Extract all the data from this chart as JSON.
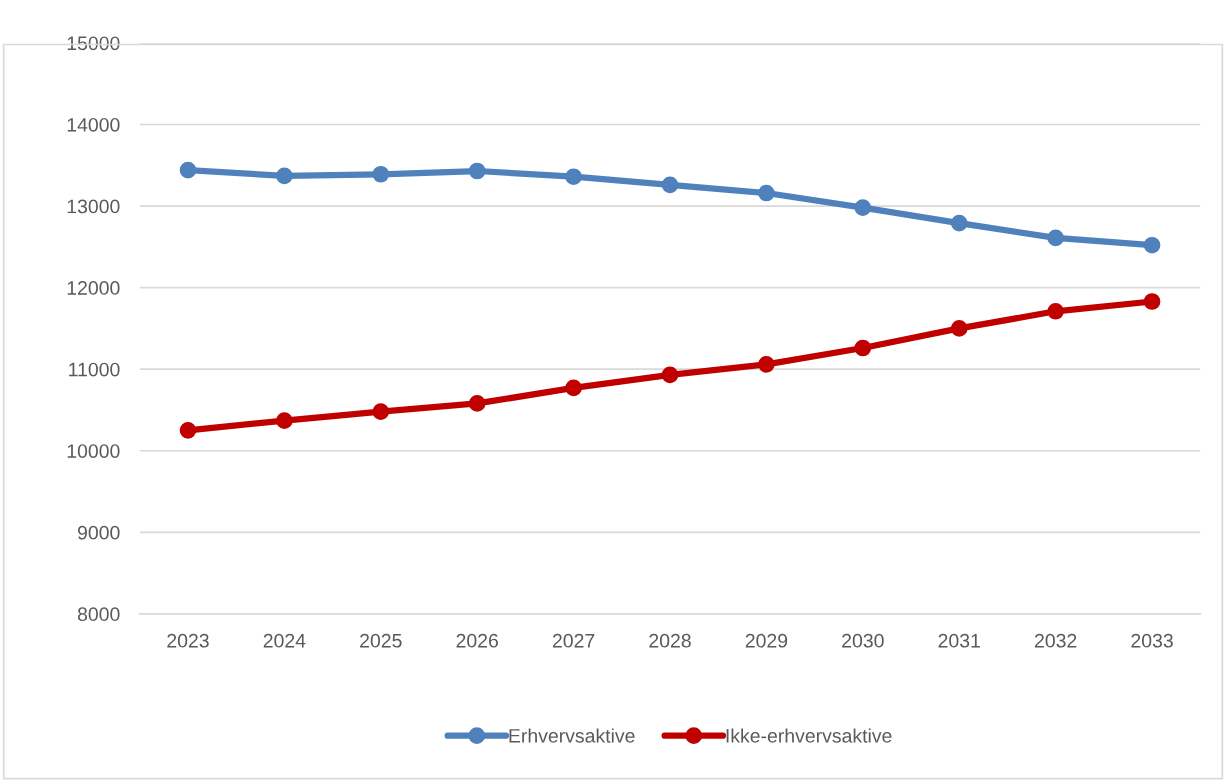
{
  "chart_data": {
    "type": "line",
    "categories": [
      "2023",
      "2024",
      "2025",
      "2026",
      "2027",
      "2028",
      "2029",
      "2030",
      "2031",
      "2032",
      "2033"
    ],
    "series": [
      {
        "name": "Erhvervsaktive",
        "color": "#4f81bd",
        "values": [
          13440,
          13370,
          13390,
          13430,
          13360,
          13260,
          13160,
          12980,
          12790,
          12610,
          12520
        ]
      },
      {
        "name": "Ikke-erhvervsaktive",
        "color": "#c00000",
        "values": [
          10250,
          10370,
          10480,
          10580,
          10770,
          10930,
          11060,
          11260,
          11500,
          11710,
          11830
        ]
      }
    ],
    "ylim": [
      8000,
      15000
    ],
    "yticks": [
      8000,
      9000,
      10000,
      11000,
      12000,
      13000,
      14000,
      15000
    ],
    "grid": "y",
    "legend": "bottom",
    "marker": "circle",
    "line_style": "solid"
  }
}
